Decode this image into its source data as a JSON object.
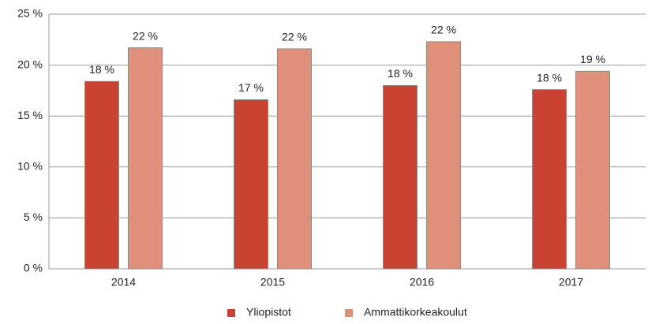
{
  "chart_data": {
    "type": "bar",
    "categories": [
      "2014",
      "2015",
      "2016",
      "2017"
    ],
    "series": [
      {
        "name": "Yliopistot",
        "color": "#c94232",
        "values": [
          18.4,
          16.6,
          18.0,
          17.6
        ],
        "value_labels": [
          "18 %",
          "17 %",
          "18 %",
          "18 %"
        ]
      },
      {
        "name": "Ammattikorkeakoulut",
        "color": "#e0907a",
        "values": [
          21.7,
          21.6,
          22.3,
          19.4
        ],
        "value_labels": [
          "22 %",
          "22 %",
          "22 %",
          "19 %"
        ]
      }
    ],
    "ylim": [
      0,
      25
    ],
    "yticks": [
      {
        "value": 0,
        "label": "0 %"
      },
      {
        "value": 5,
        "label": "5 %"
      },
      {
        "value": 10,
        "label": "10 %"
      },
      {
        "value": 15,
        "label": "15 %"
      },
      {
        "value": 20,
        "label": "20 %"
      },
      {
        "value": 25,
        "label": "25 %"
      }
    ],
    "grid": true,
    "legend": "bottom"
  }
}
